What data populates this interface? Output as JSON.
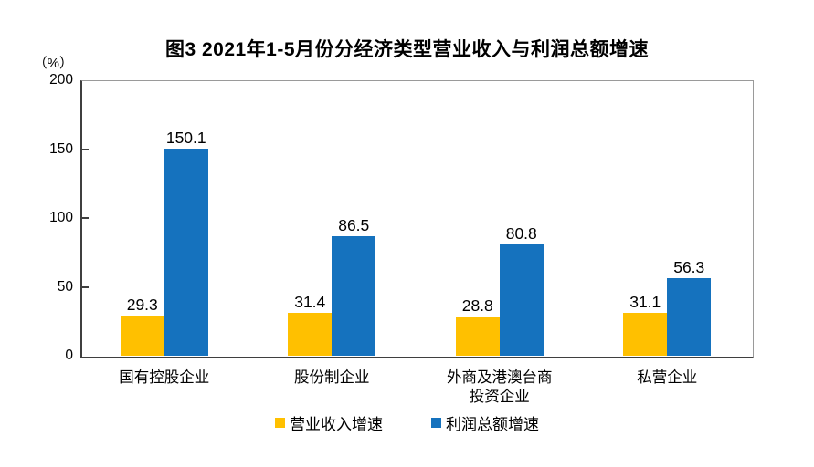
{
  "figure": {
    "title": "图3 2021年1-5月份分经济类型营业收入与利润总额增速",
    "unit_label": "（%）"
  },
  "chart_data": {
    "type": "bar",
    "title": "图3 2021年1-5月份分经济类型营业收入与利润总额增速",
    "categories": [
      "国有控股企业",
      "股份制企业",
      "外商及港澳台商\n投资企业",
      "私营企业"
    ],
    "series": [
      {
        "name": "营业收入增速",
        "slug": "revenue-growth",
        "color": "#FFC000",
        "values": [
          29.3,
          31.4,
          28.8,
          31.1
        ]
      },
      {
        "name": "利润总额增速",
        "slug": "profit-growth",
        "color": "#1572BE",
        "values": [
          150.1,
          86.5,
          80.8,
          56.3
        ]
      }
    ],
    "xlabel": "",
    "ylabel": "（%）",
    "ylim": [
      0,
      200
    ],
    "yticks": [
      0,
      50,
      100,
      150,
      200
    ],
    "grid": false,
    "legend_position": "bottom",
    "value_labels": true
  }
}
